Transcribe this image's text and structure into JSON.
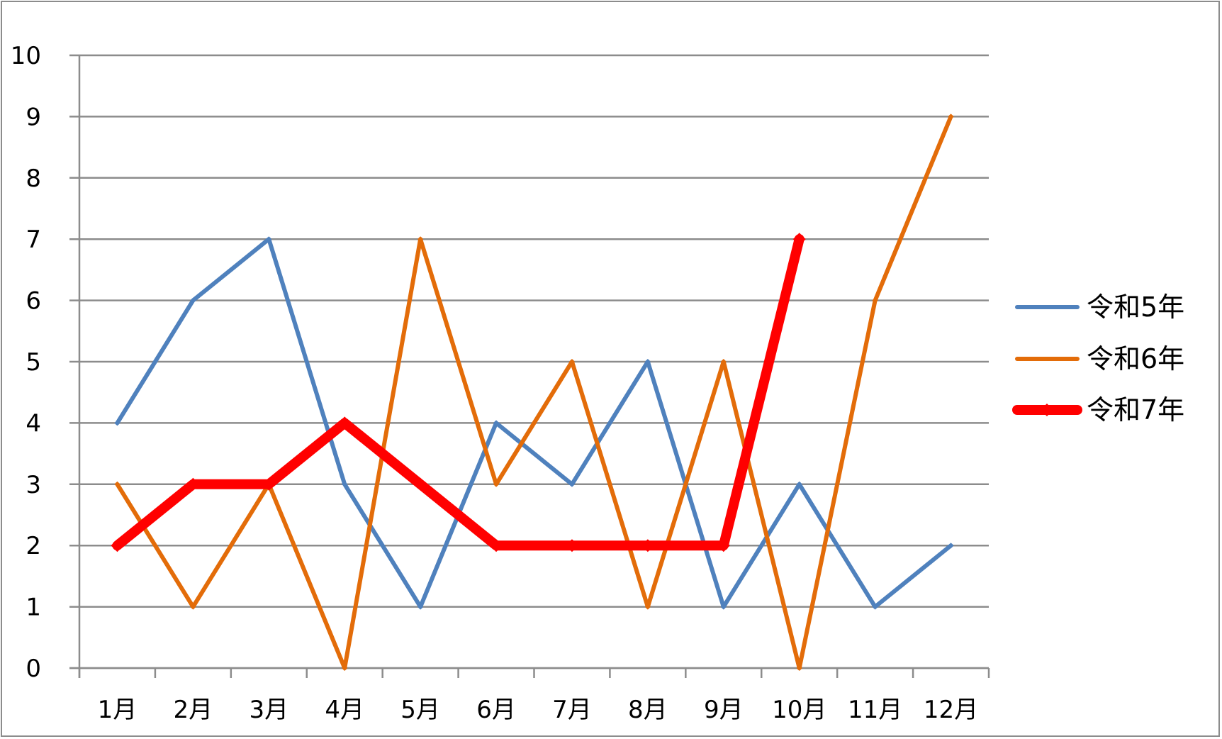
{
  "chart_data": {
    "type": "line",
    "categories": [
      "1月",
      "2月",
      "3月",
      "4月",
      "5月",
      "6月",
      "7月",
      "8月",
      "9月",
      "10月",
      "11月",
      "12月"
    ],
    "ylim": [
      0,
      10
    ],
    "yticks": [
      "0",
      "1",
      "2",
      "3",
      "4",
      "5",
      "6",
      "7",
      "8",
      "9",
      "10"
    ],
    "grid": true,
    "legend_position": "right",
    "series": [
      {
        "name": "令和5年",
        "color": "#4f81bd",
        "values": [
          4,
          6,
          7,
          3,
          1,
          4,
          3,
          5,
          1,
          3,
          1,
          2
        ]
      },
      {
        "name": "令和6年",
        "color": "#e36c09",
        "values": [
          3,
          1,
          3,
          0,
          7,
          3,
          5,
          1,
          5,
          0,
          6,
          9
        ]
      },
      {
        "name": "令和7年",
        "color": "#ff0000",
        "values": [
          2,
          3,
          3,
          4,
          3,
          2,
          2,
          2,
          2,
          7,
          null,
          null
        ]
      }
    ]
  }
}
